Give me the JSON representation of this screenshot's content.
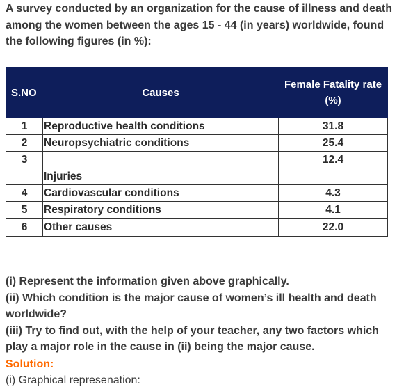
{
  "intro": "A survey conducted by an organization for the cause of illness and death among the women between the ages 15 - 44 (in years) worldwide, found the following figures (in %):",
  "table": {
    "headers": {
      "sno": "S.NO",
      "cause": "Causes",
      "rate_line1": "Female Fatality rate",
      "rate_line2": "(%)"
    },
    "rows": [
      {
        "sno": "1",
        "cause": "Reproductive health conditions",
        "rate": "31.8"
      },
      {
        "sno": "2",
        "cause": "Neuropsychiatric conditions",
        "rate": "25.4"
      },
      {
        "sno": "3",
        "cause": "Injuries",
        "rate": "12.4"
      },
      {
        "sno": "4",
        "cause": "Cardiovascular conditions",
        "rate": "4.3"
      },
      {
        "sno": "5",
        "cause": "Respiratory conditions",
        "rate": "4.1"
      },
      {
        "sno": "6",
        "cause": "Other causes",
        "rate": "22.0"
      }
    ]
  },
  "questions": [
    "(i) Represent the information given above graphically.",
    "(ii) Which condition is the major cause of women’s ill health and death worldwide?",
    "(iii) Try to find out, with the help of your teacher, any two factors which play a major role in the cause in (ii) being the major cause."
  ],
  "solution_label": "Solution:",
  "graph_line": "(i) Graphical represenation:"
}
